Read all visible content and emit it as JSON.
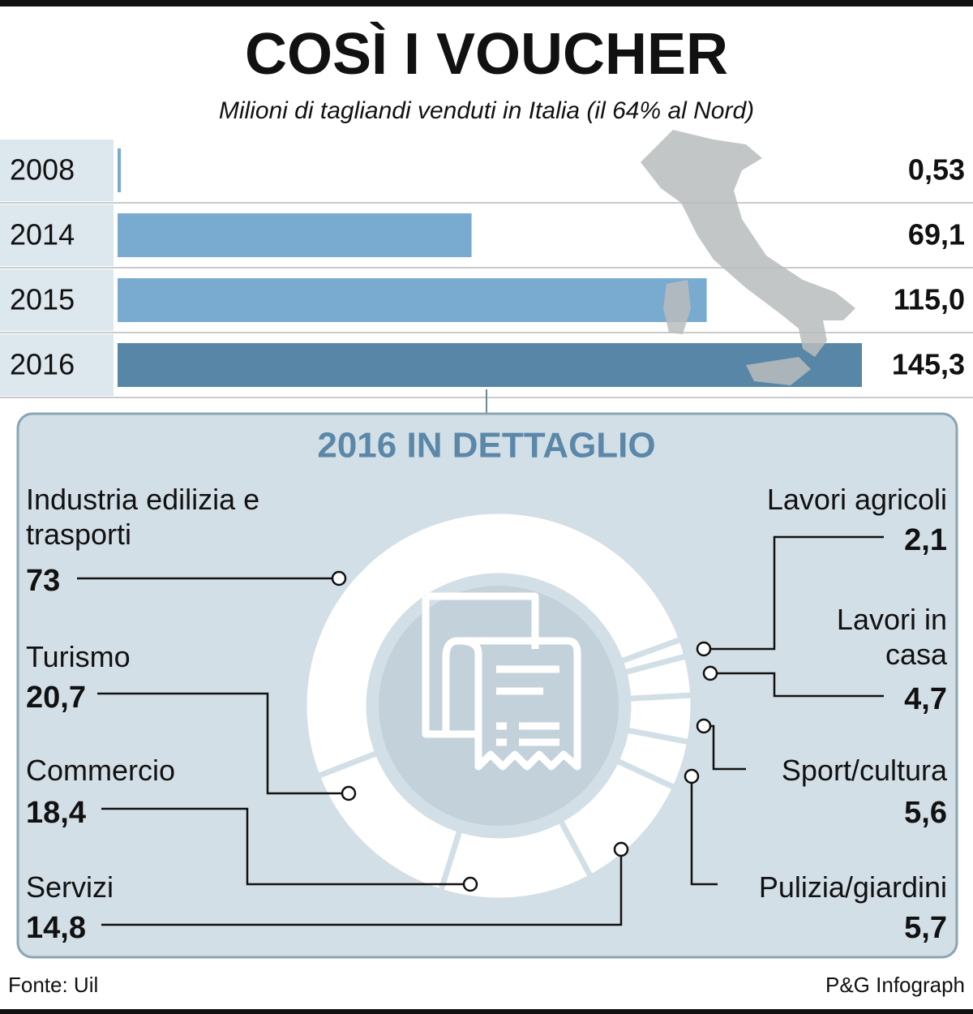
{
  "title": "COSÌ I VOUCHER",
  "subtitle": "Milioni di tagliandi venduti in Italia (il 64% al Nord)",
  "source": "Fonte: Uil",
  "credit": "P&G Infograph",
  "chart_data": [
    {
      "type": "bar",
      "orientation": "horizontal",
      "categories": [
        "2008",
        "2014",
        "2015",
        "2016"
      ],
      "values": [
        0.53,
        69.1,
        115.0,
        145.3
      ],
      "value_labels": [
        "0,53",
        "69,1",
        "115,0",
        "145,3"
      ],
      "colors": [
        "#79aad0",
        "#79aad0",
        "#79aad0",
        "#5886a6"
      ]
    },
    {
      "type": "donut",
      "title": "2016 IN DETTAGLIO",
      "categories": [
        "Lavori agricoli",
        "Lavori in casa",
        "Sport/cultura",
        "Pulizia/giardini",
        "Servizi",
        "Commercio",
        "Turismo",
        "Industria edilizia e trasporti"
      ],
      "values": [
        2.1,
        4.7,
        5.6,
        5.7,
        14.8,
        18.4,
        20.7,
        73
      ],
      "value_labels": [
        "2,1",
        "4,7",
        "5,6",
        "5,7",
        "14,8",
        "18,4",
        "20,7",
        "73"
      ],
      "color": "#ffffff"
    }
  ]
}
